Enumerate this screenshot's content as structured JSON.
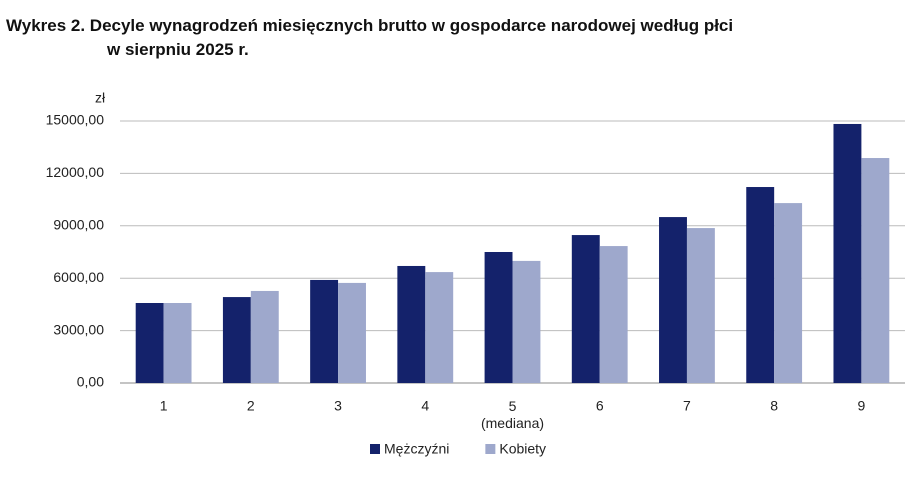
{
  "chart_data": {
    "type": "bar",
    "title": "Wykres 2. Decyle wynagrodzeń miesięcznych brutto w gospodarce narodowej według płci\nw sierpniu 2025 r.",
    "y_label": "zł",
    "categories": [
      "1",
      "2",
      "3",
      "4",
      "5\n(mediana)",
      "6",
      "7",
      "8",
      "9"
    ],
    "series": [
      {
        "name": "Mężczyźni",
        "color": "#14226b",
        "values": [
          4580,
          4920,
          5900,
          6700,
          7500,
          8470,
          9500,
          11220,
          14830
        ]
      },
      {
        "name": "Kobiety",
        "color": "#9ea8cc",
        "values": [
          4580,
          5270,
          5730,
          6350,
          6990,
          7840,
          8870,
          10300,
          12880
        ]
      }
    ],
    "ylim": [
      0,
      15000
    ],
    "yticks": [
      {
        "value": 0,
        "label": "0,00"
      },
      {
        "value": 3000,
        "label": "3000,00"
      },
      {
        "value": 6000,
        "label": "6000,00"
      },
      {
        "value": 9000,
        "label": "9000,00"
      },
      {
        "value": 12000,
        "label": "12000,00"
      },
      {
        "value": 15000,
        "label": "15000,00"
      }
    ],
    "grid": true,
    "legend": "bottom"
  }
}
